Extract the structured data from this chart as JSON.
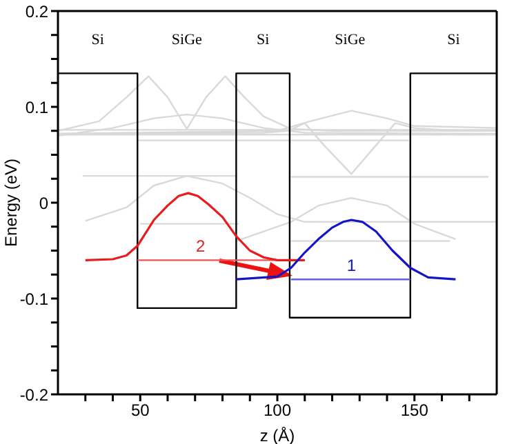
{
  "chart_data": {
    "type": "line",
    "xlabel": "z (Å)",
    "ylabel": "Energy (eV)",
    "xlim": [
      20,
      180
    ],
    "ylim": [
      -0.2,
      0.2
    ],
    "xticks": [
      {
        "value": 30,
        "label": null
      },
      {
        "value": 40,
        "label": null
      },
      50,
      {
        "value": 60,
        "label": null
      },
      {
        "value": 70,
        "label": null
      },
      {
        "value": 80,
        "label": null
      },
      {
        "value": 90,
        "label": null
      },
      100,
      {
        "value": 110,
        "label": null
      },
      {
        "value": 120,
        "label": null
      },
      {
        "value": 130,
        "label": null
      },
      {
        "value": 140,
        "label": null
      },
      150,
      {
        "value": 160,
        "label": null
      },
      {
        "value": 170,
        "label": null
      }
    ],
    "yticks": [
      -0.2,
      {
        "value": -0.175,
        "label": null
      },
      {
        "value": -0.15,
        "label": null
      },
      {
        "value": -0.125,
        "label": null
      },
      -0.1,
      {
        "value": -0.075,
        "label": null
      },
      {
        "value": -0.05,
        "label": null
      },
      {
        "value": -0.025,
        "label": null
      },
      0,
      {
        "value": 0.025,
        "label": null
      },
      {
        "value": 0.05,
        "label": null
      },
      {
        "value": 0.075,
        "label": null
      },
      0.1,
      {
        "value": 0.125,
        "label": null
      },
      {
        "value": 0.15,
        "label": null
      },
      {
        "value": 0.175,
        "label": null
      },
      0.2
    ],
    "grid": false,
    "legend": false,
    "marker": "none",
    "line_style": "solid",
    "annotations": [
      "Si",
      "SiGe",
      "Si",
      "SiGe",
      "Si"
    ],
    "series": [
      {
        "color": "#d9d9d9",
        "x": [
          29,
          85
        ],
        "values": [
          0.028,
          0.028
        ]
      },
      {
        "color": "#d9d9d9",
        "x": [
          105,
          177
        ],
        "values": [
          0.027,
          0.027
        ]
      },
      {
        "color": "#d9d9d9",
        "x": [
          20,
          180
        ],
        "values": [
          0.076,
          0.076
        ]
      },
      {
        "color": "#d9d9d9",
        "x": [
          20,
          180
        ],
        "values": [
          0.071,
          0.071
        ]
      },
      {
        "color": "#d9d9d9",
        "x": [
          49,
          148
        ],
        "values": [
          0.065,
          0.065
        ]
      },
      {
        "color": "#d9d9d9",
        "x": [
          50,
          86
        ],
        "values": [
          -0.022,
          -0.022
        ]
      },
      {
        "color": "#d9d9d9",
        "x": [
          105,
          163
        ],
        "values": [
          -0.04,
          -0.04
        ]
      },
      {
        "color": "#d9d9d9",
        "x": [
          20,
          35,
          45,
          53,
          60,
          67,
          74,
          81,
          88,
          95,
          105,
          120,
          180
        ],
        "values": [
          0.075,
          0.085,
          0.11,
          0.132,
          0.11,
          0.077,
          0.11,
          0.132,
          0.11,
          0.09,
          0.077,
          0.075,
          0.075
        ]
      },
      {
        "color": "#d9d9d9",
        "x": [
          20,
          40,
          55,
          67,
          80,
          95,
          110,
          180
        ],
        "values": [
          0.07,
          0.078,
          0.088,
          0.092,
          0.088,
          0.078,
          0.073,
          0.072
        ]
      },
      {
        "color": "#d9d9d9",
        "x": [
          20,
          95,
          104,
          110,
          117,
          127,
          136,
          143,
          150,
          165,
          180
        ],
        "values": [
          0.072,
          0.073,
          0.075,
          0.083,
          0.06,
          0.03,
          0.06,
          0.083,
          0.078,
          0.075,
          0.075
        ]
      },
      {
        "color": "#d9d9d9",
        "x": [
          20,
          100,
          112,
          127,
          140,
          150,
          180
        ],
        "values": [
          0.072,
          0.075,
          0.085,
          0.096,
          0.088,
          0.08,
          0.078
        ]
      },
      {
        "color": "#d9d9d9",
        "x": [
          30,
          45,
          55,
          67,
          80,
          90,
          100,
          110,
          180
        ],
        "values": [
          -0.019,
          -0.005,
          0.018,
          0.028,
          0.02,
          0.005,
          -0.012,
          -0.02,
          -0.02
        ]
      },
      {
        "color": "#d9d9d9",
        "x": [
          85,
          105,
          115,
          127,
          140,
          150,
          165
        ],
        "values": [
          -0.04,
          -0.02,
          -0.003,
          0.005,
          -0.003,
          -0.022,
          -0.038
        ]
      },
      {
        "color": "#000000",
        "x": [
          20,
          49,
          49,
          85,
          85,
          104.5,
          104.5,
          148.5,
          148.5,
          180
        ],
        "values": [
          0.135,
          0.135,
          -0.11,
          -0.11,
          0.135,
          0.135,
          -0.12,
          -0.12,
          0.135,
          0.135
        ]
      },
      {
        "color": "#f05050",
        "x": [
          49,
          110
        ],
        "values": [
          -0.06,
          -0.06
        ]
      },
      {
        "color": "#6060e0",
        "x": [
          105,
          148.5
        ],
        "values": [
          -0.08,
          -0.08
        ]
      },
      {
        "name": "2",
        "color": "#e81c1c",
        "x": [
          30,
          40,
          45,
          49,
          55,
          60,
          64,
          67.5,
          71,
          75,
          80,
          85,
          90,
          95,
          100,
          110
        ],
        "values": [
          -0.06,
          -0.059,
          -0.055,
          -0.045,
          -0.018,
          -0.003,
          0.007,
          0.01,
          0.007,
          -0.002,
          -0.015,
          -0.035,
          -0.05,
          -0.057,
          -0.06,
          -0.06
        ]
      },
      {
        "name": "1",
        "color": "#1414c8",
        "x": [
          85,
          100,
          105,
          110,
          115,
          120,
          124,
          127,
          131,
          136,
          142,
          148.5,
          155,
          165
        ],
        "values": [
          -0.08,
          -0.077,
          -0.068,
          -0.052,
          -0.038,
          -0.026,
          -0.02,
          -0.018,
          -0.02,
          -0.03,
          -0.05,
          -0.068,
          -0.078,
          -0.08
        ]
      }
    ]
  }
}
